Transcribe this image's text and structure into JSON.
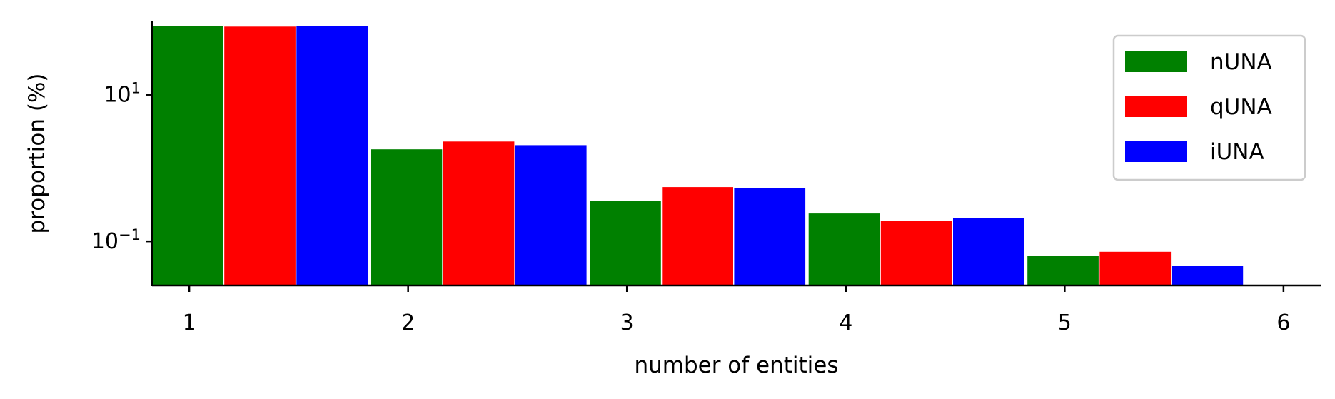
{
  "chart_data": {
    "type": "bar",
    "title": "",
    "xlabel": "number of entities",
    "ylabel": "proportion (%)",
    "yscale": "log",
    "ylim": [
      0.025,
      100
    ],
    "xlim": [
      0.83,
      6.17
    ],
    "x_ticks": [
      "1",
      "2",
      "3",
      "4",
      "5",
      "6"
    ],
    "y_ticks": [
      {
        "value": 10,
        "base": "10",
        "exp": "1"
      },
      {
        "value": 0.1,
        "base": "10",
        "exp": "−1"
      }
    ],
    "categories": [
      1,
      2,
      3,
      4,
      5
    ],
    "series": [
      {
        "name": "nUNA",
        "color": "#008000",
        "values": [
          87.0,
          1.8,
          0.36,
          0.24,
          0.063
        ]
      },
      {
        "name": "qUNA",
        "color": "#ff0000",
        "values": [
          85.0,
          2.3,
          0.55,
          0.19,
          0.072
        ]
      },
      {
        "name": "iUNA",
        "color": "#0000ff",
        "values": [
          86.0,
          2.05,
          0.53,
          0.21,
          0.046
        ]
      }
    ],
    "legend": "top-right",
    "grid": false
  }
}
